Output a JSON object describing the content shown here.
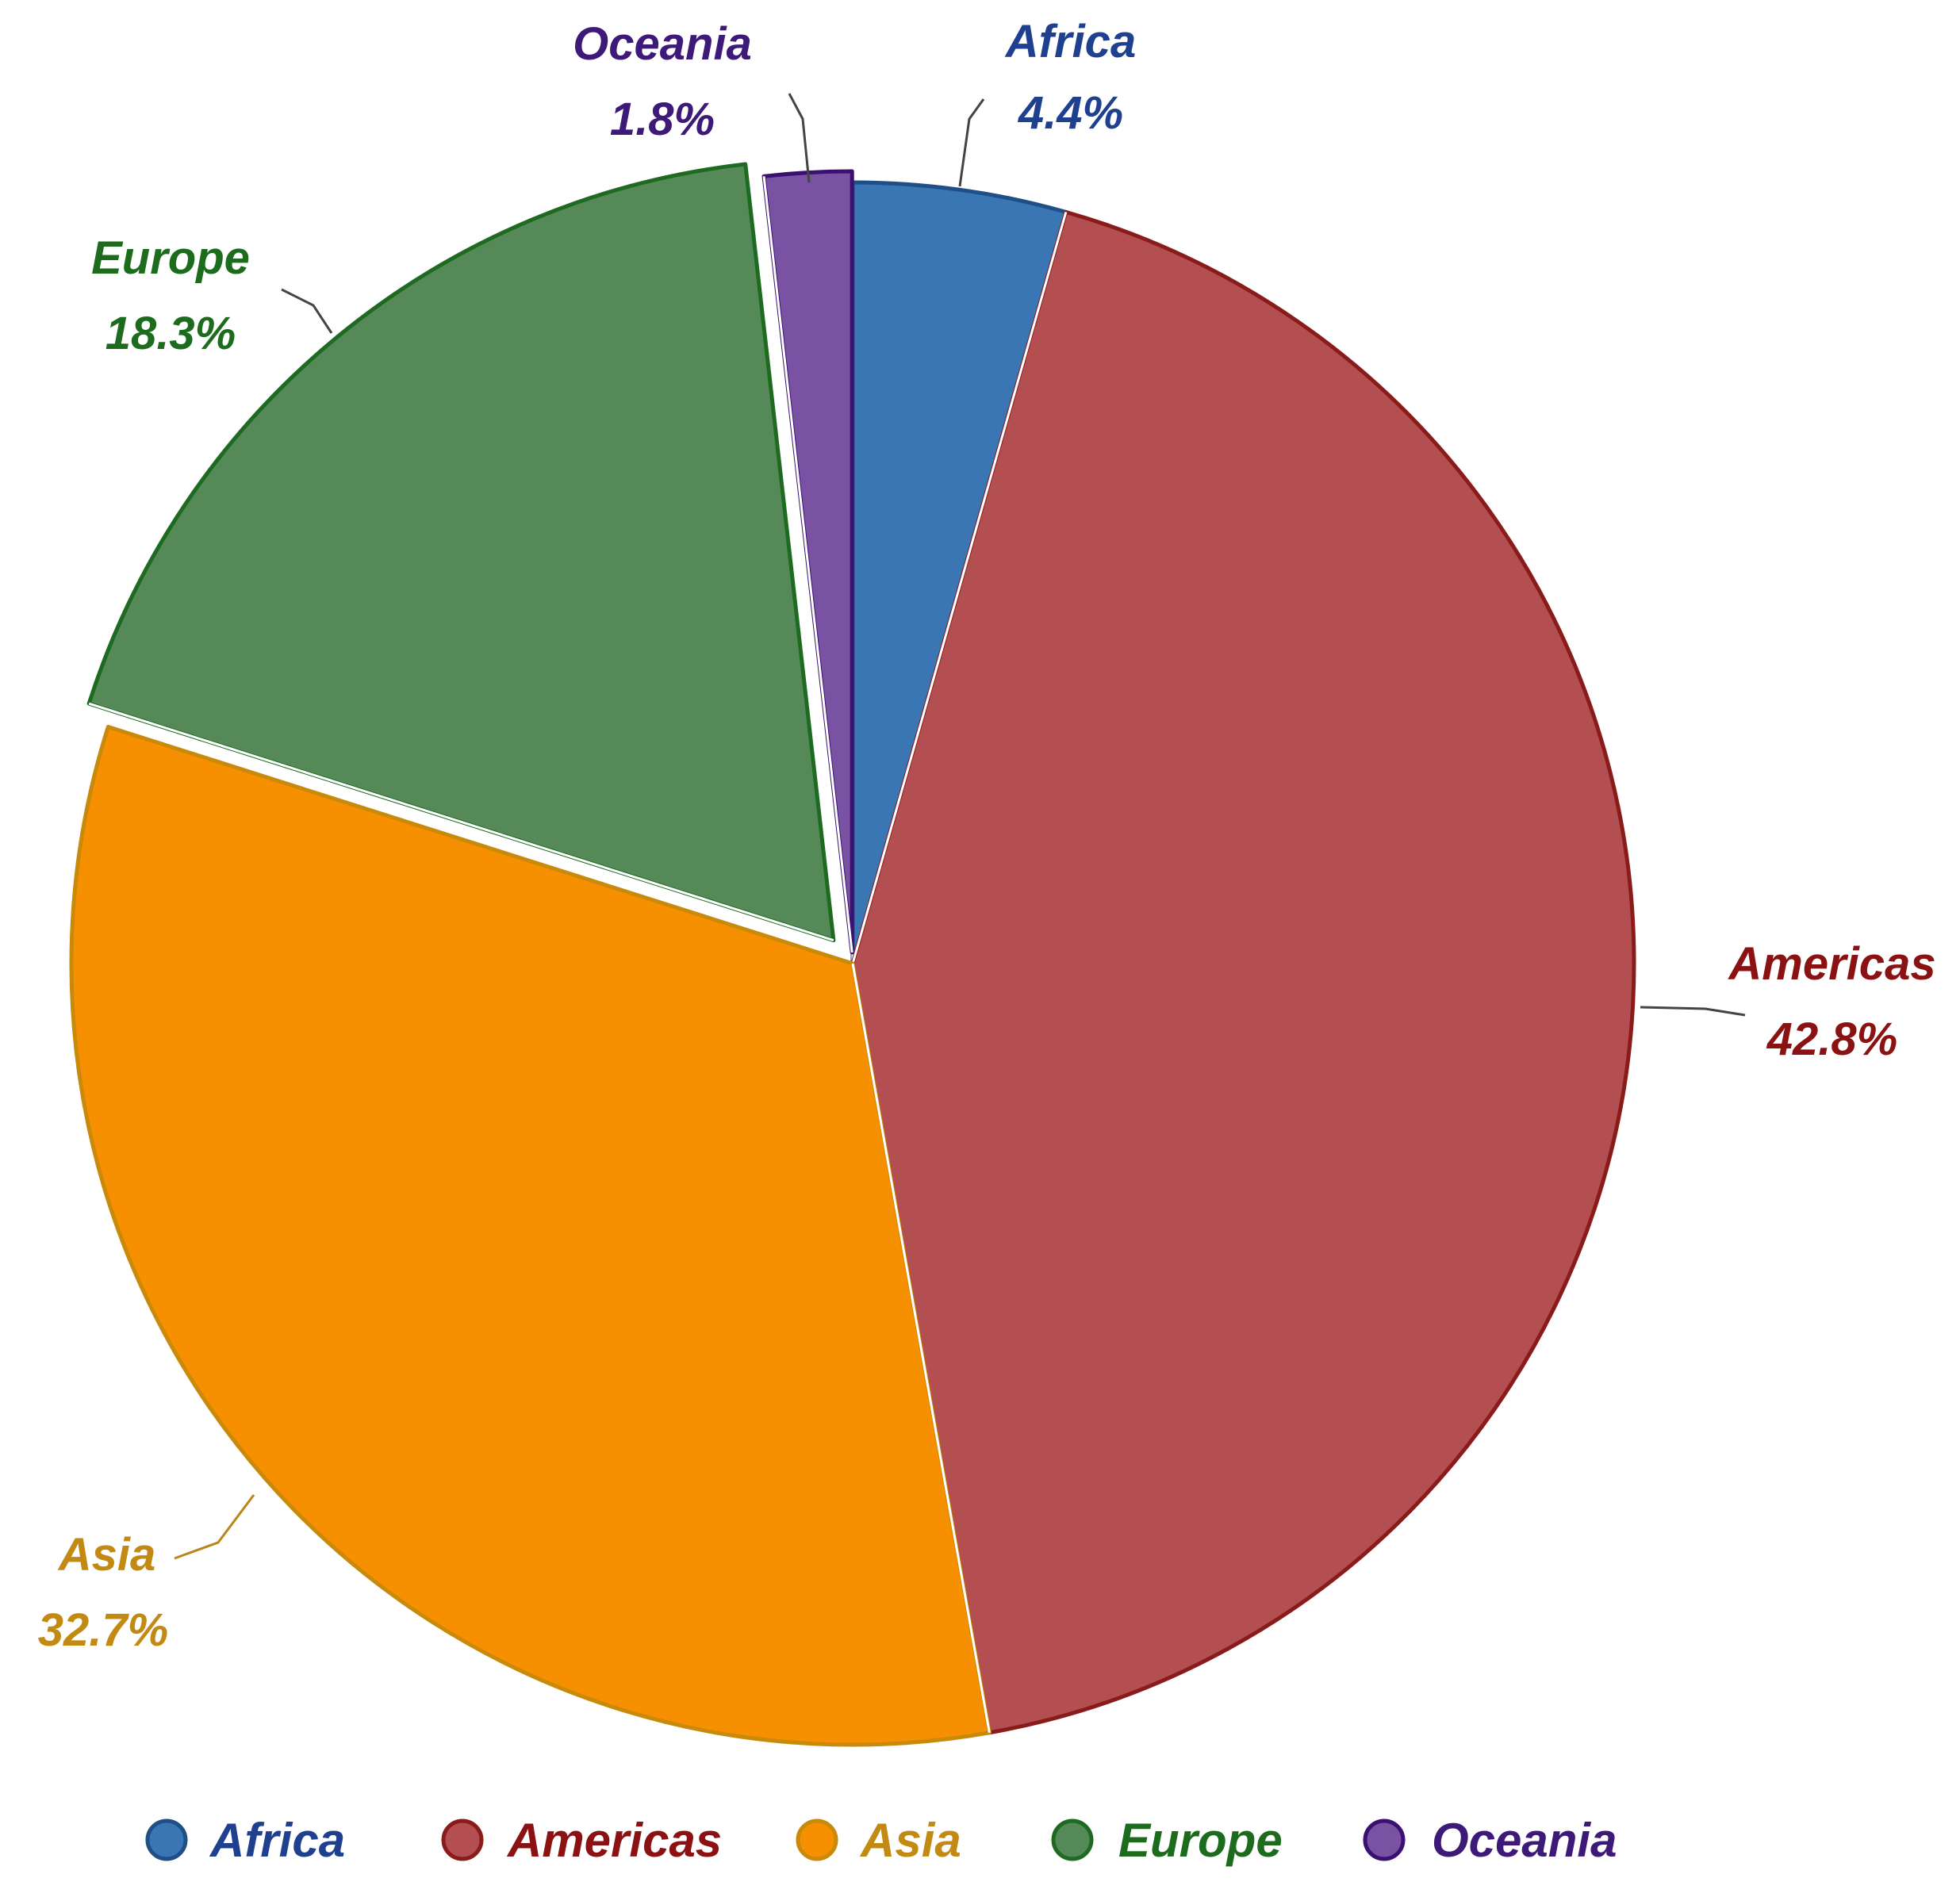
{
  "chart_data": {
    "type": "pie",
    "title": "",
    "start_angle_deg": 0,
    "direction": "clockwise",
    "legend_position": "bottom",
    "slices": [
      {
        "name": "Africa",
        "value": 4.4,
        "label": "4.4%",
        "color": "#3a76b4",
        "stroke": "#1f4f86",
        "text_color": "#1f3f8f"
      },
      {
        "name": "Americas",
        "value": 42.8,
        "label": "42.8%",
        "color": "#b34f50",
        "stroke": "#8a1b1b",
        "text_color": "#8b1212"
      },
      {
        "name": "Asia",
        "value": 32.7,
        "label": "32.7%",
        "color": "#f79000",
        "stroke": "#c9890a",
        "text_color": "#c28a12"
      },
      {
        "name": "Europe",
        "value": 18.3,
        "label": "18.3%",
        "color": "#558a58",
        "stroke": "#1e6a21",
        "text_color": "#1d6b1d"
      },
      {
        "name": "Oceania",
        "value": 1.8,
        "label": "1.8%",
        "color": "#7a52a3",
        "stroke": "#3a1170",
        "text_color": "#3d1a78"
      }
    ],
    "legend": [
      "Africa",
      "Americas",
      "Asia",
      "Europe",
      "Oceania"
    ]
  }
}
